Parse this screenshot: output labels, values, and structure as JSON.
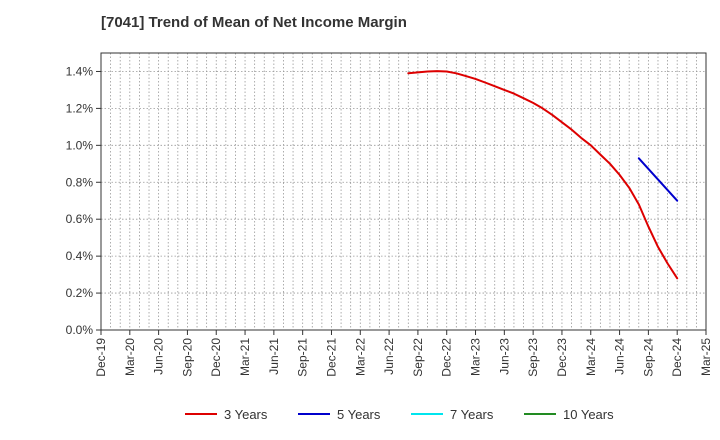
{
  "chart_data": {
    "type": "line",
    "title": "[7041]  Trend of Mean of Net Income Margin",
    "xlabel": "",
    "ylabel": "",
    "x_ticks": [
      "Dec-19",
      "Mar-20",
      "Jun-20",
      "Sep-20",
      "Dec-20",
      "Mar-21",
      "Jun-21",
      "Sep-21",
      "Dec-21",
      "Mar-22",
      "Jun-22",
      "Sep-22",
      "Dec-22",
      "Mar-23",
      "Jun-23",
      "Sep-23",
      "Dec-23",
      "Mar-24",
      "Jun-24",
      "Sep-24",
      "Dec-24",
      "Mar-25"
    ],
    "y_ticks": [
      "0.0%",
      "0.2%",
      "0.4%",
      "0.6%",
      "0.8%",
      "1.0%",
      "1.2%",
      "1.4%"
    ],
    "ylim": [
      0,
      1.5
    ],
    "grid": true,
    "legend_position": "bottom",
    "series": [
      {
        "name": "3 Years",
        "color": "#dd0000",
        "x": [
          "Aug-22",
          "Sep-22",
          "Oct-22",
          "Nov-22",
          "Dec-22",
          "Jan-23",
          "Feb-23",
          "Mar-23",
          "Apr-23",
          "May-23",
          "Jun-23",
          "Jul-23",
          "Aug-23",
          "Sep-23",
          "Oct-23",
          "Nov-23",
          "Dec-23",
          "Jan-24",
          "Feb-24",
          "Mar-24",
          "Apr-24",
          "May-24",
          "Jun-24",
          "Jul-24",
          "Aug-24",
          "Sep-24",
          "Oct-24",
          "Nov-24",
          "Dec-24"
        ],
        "values": [
          1.39,
          1.395,
          1.4,
          1.402,
          1.4,
          1.39,
          1.375,
          1.36,
          1.34,
          1.32,
          1.3,
          1.28,
          1.255,
          1.23,
          1.2,
          1.165,
          1.125,
          1.085,
          1.04,
          1.0,
          0.95,
          0.9,
          0.84,
          0.77,
          0.68,
          0.56,
          0.45,
          0.36,
          0.28
        ]
      },
      {
        "name": "5 Years",
        "color": "#0000cc",
        "x": [
          "Aug-24",
          "Dec-24"
        ],
        "values": [
          0.93,
          0.7
        ]
      },
      {
        "name": "7 Years",
        "color": "#00e5ee",
        "x": [],
        "values": []
      },
      {
        "name": "10 Years",
        "color": "#228b22",
        "x": [],
        "values": []
      }
    ]
  }
}
